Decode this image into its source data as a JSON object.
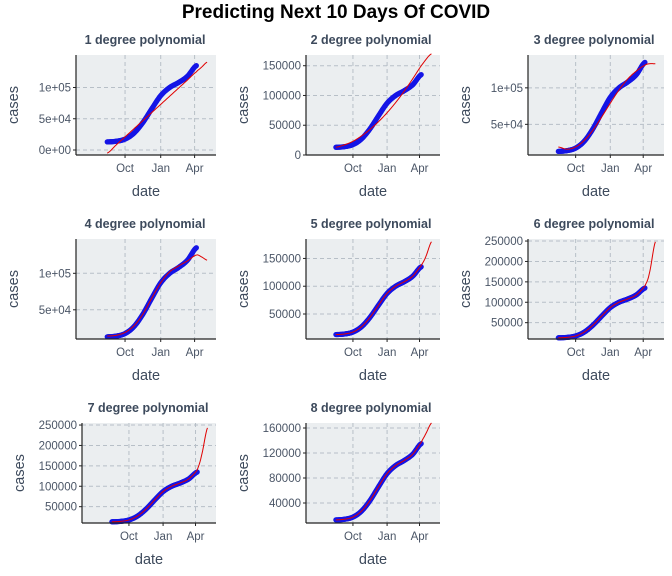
{
  "title": "Predicting Next 10 Days Of COVID",
  "colors": {
    "panel_bg": "#ebeef0",
    "grid": "#b7bfc7",
    "points": "#1515e6",
    "fit": "#e00000",
    "axis": "#222222"
  },
  "chart_data": [
    {
      "type": "line",
      "title": "1 degree polynomial",
      "xlabel": "date",
      "ylabel": "cases",
      "x_ticks": [
        "Oct",
        "Jan",
        "Apr"
      ],
      "y_ticks": [
        "0e+00",
        "5e+04",
        "1e+05"
      ],
      "ylim": [
        -8000,
        152000
      ],
      "fit": [
        [
          0,
          -5000
        ],
        [
          0.1,
          8000
        ],
        [
          0.2,
          21000
        ],
        [
          0.3,
          34000
        ],
        [
          0.4,
          47000
        ],
        [
          0.5,
          60000
        ],
        [
          0.6,
          73000
        ],
        [
          0.7,
          86000
        ],
        [
          0.8,
          99000
        ],
        [
          0.9,
          112000
        ],
        [
          1,
          125000
        ],
        [
          1.05,
          131500
        ],
        [
          1.12,
          140500
        ]
      ]
    },
    {
      "type": "line",
      "title": "2 degree polynomial",
      "xlabel": "date",
      "ylabel": "cases",
      "x_ticks": [
        "Oct",
        "Jan",
        "Apr"
      ],
      "y_ticks": [
        "0",
        "50000",
        "100000",
        "150000"
      ],
      "ylim": [
        0,
        168000
      ],
      "fit": [
        [
          0,
          13000
        ],
        [
          0.1,
          17000
        ],
        [
          0.2,
          23000
        ],
        [
          0.3,
          32000
        ],
        [
          0.4,
          43000
        ],
        [
          0.5,
          56000
        ],
        [
          0.6,
          71000
        ],
        [
          0.7,
          88000
        ],
        [
          0.8,
          107000
        ],
        [
          0.9,
          128000
        ],
        [
          1,
          150000
        ],
        [
          1.12,
          170000
        ]
      ]
    },
    {
      "type": "line",
      "title": "3 degree polynomial",
      "xlabel": "date",
      "ylabel": "cases",
      "x_ticks": [
        "Oct",
        "Jan",
        "Apr"
      ],
      "y_ticks": [
        "5e+04",
        "1e+05"
      ],
      "ylim": [
        8000,
        145000
      ],
      "fit": [
        [
          0,
          19000
        ],
        [
          0.1,
          16000
        ],
        [
          0.2,
          19000
        ],
        [
          0.3,
          28000
        ],
        [
          0.4,
          42000
        ],
        [
          0.5,
          60000
        ],
        [
          0.6,
          79000
        ],
        [
          0.7,
          97000
        ],
        [
          0.8,
          112000
        ],
        [
          0.9,
          123000
        ],
        [
          1,
          131000
        ],
        [
          1.05,
          133000
        ],
        [
          1.12,
          133000
        ]
      ]
    },
    {
      "type": "line",
      "title": "4 degree polynomial",
      "xlabel": "date",
      "ylabel": "cases",
      "x_ticks": [
        "Oct",
        "Jan",
        "Apr"
      ],
      "y_ticks": [
        "5e+04",
        "1e+05"
      ],
      "ylim": [
        10000,
        147000
      ],
      "fit": [
        [
          0,
          14000
        ],
        [
          0.1,
          15000
        ],
        [
          0.2,
          19000
        ],
        [
          0.3,
          28000
        ],
        [
          0.4,
          44000
        ],
        [
          0.5,
          66000
        ],
        [
          0.6,
          87000
        ],
        [
          0.7,
          102000
        ],
        [
          0.8,
          110000
        ],
        [
          0.9,
          117000
        ],
        [
          1,
          125000
        ],
        [
          1.05,
          123000
        ],
        [
          1.12,
          118000
        ]
      ]
    },
    {
      "type": "line",
      "title": "5 degree polynomial",
      "xlabel": "date",
      "ylabel": "cases",
      "x_ticks": [
        "Oct",
        "Jan",
        "Apr"
      ],
      "y_ticks": [
        "50000",
        "100000",
        "150000"
      ],
      "ylim": [
        5000,
        185000
      ],
      "fit": [
        [
          0,
          13000
        ],
        [
          0.1,
          14000
        ],
        [
          0.2,
          17500
        ],
        [
          0.3,
          27000
        ],
        [
          0.4,
          44000
        ],
        [
          0.5,
          66000
        ],
        [
          0.6,
          87000
        ],
        [
          0.7,
          100000
        ],
        [
          0.8,
          108000
        ],
        [
          0.9,
          118000
        ],
        [
          1,
          137000
        ],
        [
          1.05,
          152000
        ],
        [
          1.12,
          180000
        ]
      ]
    },
    {
      "type": "line",
      "title": "6 degree polynomial",
      "xlabel": "date",
      "ylabel": "cases",
      "x_ticks": [
        "Oct",
        "Jan",
        "Apr"
      ],
      "y_ticks": [
        "50000",
        "100000",
        "150000",
        "200000",
        "250000"
      ],
      "ylim": [
        10000,
        255000
      ],
      "fit": [
        [
          0,
          13000
        ],
        [
          0.1,
          14000
        ],
        [
          0.2,
          17500
        ],
        [
          0.3,
          27000
        ],
        [
          0.4,
          44000
        ],
        [
          0.5,
          66000
        ],
        [
          0.6,
          87000
        ],
        [
          0.7,
          100000
        ],
        [
          0.8,
          108000
        ],
        [
          0.9,
          118000
        ],
        [
          1,
          140000
        ],
        [
          1.05,
          170000
        ],
        [
          1.12,
          248000
        ]
      ]
    },
    {
      "type": "line",
      "title": "7 degree polynomial",
      "xlabel": "date",
      "ylabel": "cases",
      "x_ticks": [
        "Oct",
        "Jan",
        "Apr"
      ],
      "y_ticks": [
        "50000",
        "100000",
        "150000",
        "200000",
        "250000"
      ],
      "ylim": [
        10000,
        255000
      ],
      "fit": [
        [
          0,
          13000
        ],
        [
          0.1,
          14000
        ],
        [
          0.2,
          17500
        ],
        [
          0.3,
          27000
        ],
        [
          0.4,
          44000
        ],
        [
          0.5,
          66000
        ],
        [
          0.6,
          87000
        ],
        [
          0.7,
          100000
        ],
        [
          0.8,
          108000
        ],
        [
          0.9,
          118000
        ],
        [
          1,
          140000
        ],
        [
          1.05,
          175000
        ],
        [
          1.12,
          243000
        ]
      ]
    },
    {
      "type": "line",
      "title": "8 degree polynomial",
      "xlabel": "date",
      "ylabel": "cases",
      "x_ticks": [
        "Oct",
        "Jan",
        "Apr"
      ],
      "y_ticks": [
        "40000",
        "80000",
        "120000",
        "160000"
      ],
      "ylim": [
        8000,
        168000
      ],
      "fit": [
        [
          0,
          13000
        ],
        [
          0.1,
          14000
        ],
        [
          0.2,
          17500
        ],
        [
          0.3,
          27000
        ],
        [
          0.4,
          44000
        ],
        [
          0.5,
          66000
        ],
        [
          0.6,
          87000
        ],
        [
          0.7,
          100000
        ],
        [
          0.8,
          108000
        ],
        [
          0.9,
          118000
        ],
        [
          1,
          137000
        ],
        [
          1.05,
          150000
        ],
        [
          1.12,
          168000
        ]
      ]
    }
  ],
  "observed": [
    [
      0,
      13000
    ],
    [
      0.1,
      14000
    ],
    [
      0.2,
      17500
    ],
    [
      0.3,
      27000
    ],
    [
      0.4,
      44000
    ],
    [
      0.5,
      66000
    ],
    [
      0.6,
      87000
    ],
    [
      0.7,
      100000
    ],
    [
      0.8,
      108000
    ],
    [
      0.9,
      118000
    ],
    [
      1,
      135000
    ]
  ]
}
